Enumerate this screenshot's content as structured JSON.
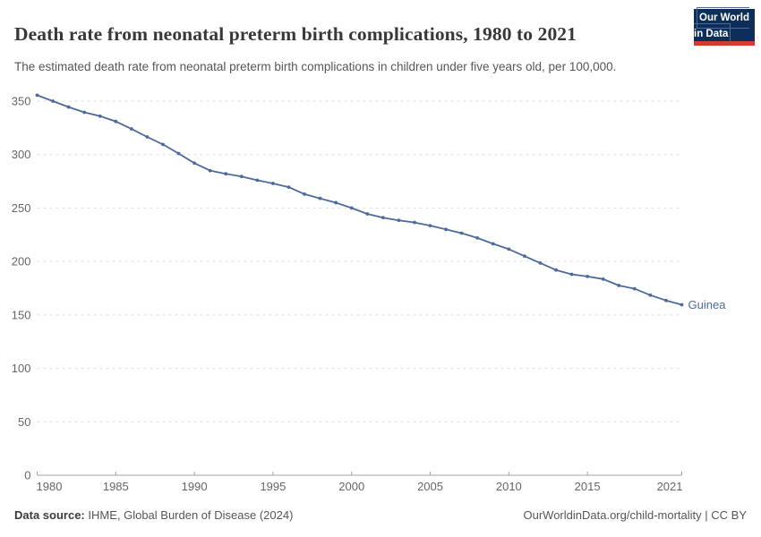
{
  "header": {
    "title": "Death rate from neonatal preterm birth complications, 1980 to 2021",
    "subtitle": "The estimated death rate from neonatal preterm birth complications in children under five years old, per 100,000.",
    "logo": {
      "line1": "Our World",
      "line2": "in Data"
    }
  },
  "chart_data": {
    "type": "line",
    "title": "Death rate from neonatal preterm birth complications, 1980 to 2021",
    "xlabel": "",
    "ylabel": "",
    "x": [
      1980,
      1981,
      1982,
      1983,
      1984,
      1985,
      1986,
      1987,
      1988,
      1989,
      1990,
      1991,
      1992,
      1993,
      1994,
      1995,
      1996,
      1997,
      1998,
      1999,
      2000,
      2001,
      2002,
      2003,
      2004,
      2005,
      2006,
      2007,
      2008,
      2009,
      2010,
      2011,
      2012,
      2013,
      2014,
      2015,
      2016,
      2017,
      2018,
      2019,
      2020,
      2021
    ],
    "series": [
      {
        "name": "Guinea",
        "values": [
          355.5,
          350,
          344.5,
          339.5,
          336,
          331,
          324,
          316.5,
          309.5,
          301,
          292,
          285,
          282,
          279.5,
          276,
          273,
          269.5,
          263,
          259,
          255,
          250,
          244.5,
          241,
          238.5,
          236.5,
          233.5,
          230,
          226.5,
          222,
          216.5,
          211.5,
          205,
          198.5,
          192,
          188,
          186,
          183.5,
          177.5,
          174.5,
          168.5,
          163.5,
          159.5
        ]
      }
    ],
    "xticks": [
      1980,
      1985,
      1990,
      1995,
      2000,
      2005,
      2010,
      2015,
      2021
    ],
    "yticks": [
      0,
      50,
      100,
      150,
      200,
      250,
      300,
      350
    ],
    "ylim": [
      0,
      360
    ],
    "xlim": [
      1980,
      2021
    ],
    "grid": "horizontal-dashed",
    "legend_position": "end-of-line-label",
    "end_label": "Guinea",
    "markers": true
  },
  "colors": {
    "line": "#4c6a9c",
    "end_label": "#4c6a9c",
    "grid": "#dddddd",
    "axis": "#a3a3a3",
    "tick_label": "#666666",
    "logo_bg": "#0d2e5a",
    "logo_red": "#d73b2d"
  },
  "footer": {
    "source_label": "Data source:",
    "source_text": " IHME, Global Burden of Disease (2024)",
    "credit": "OurWorldinData.org/child-mortality | CC BY"
  }
}
